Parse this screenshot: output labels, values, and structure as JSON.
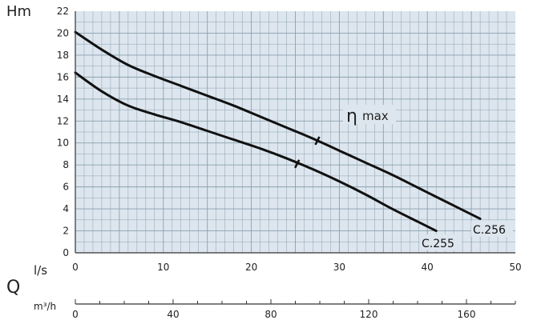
{
  "chart_data": {
    "type": "line",
    "ylabel": "Hm",
    "xlabel": "l/s",
    "big_label": "Q",
    "secondary_xlabel": "m³/h",
    "eta_label_symbol": "η",
    "eta_label_text": "max",
    "xlim": [
      0,
      50
    ],
    "ylim": [
      0,
      22
    ],
    "x_ticks": [
      0,
      10,
      20,
      30,
      40,
      50
    ],
    "y_ticks": [
      0,
      2,
      4,
      6,
      8,
      10,
      12,
      14,
      16,
      18,
      20,
      22
    ],
    "secondary_ticks": [
      0,
      40,
      80,
      120,
      160
    ],
    "secondary_factor": 3.6,
    "grid": true,
    "colors": {
      "background": "#dde6ee",
      "grid": "#8aa0b0",
      "curve": "#111111"
    },
    "series": [
      {
        "name": "C.256",
        "x": [
          0,
          3,
          6,
          9,
          12,
          15,
          18,
          21,
          24,
          27,
          30,
          33,
          36,
          39,
          42,
          46
        ],
        "y": [
          20.1,
          18.5,
          17.1,
          16.1,
          15.2,
          14.3,
          13.4,
          12.4,
          11.4,
          10.4,
          9.3,
          8.2,
          7.1,
          5.9,
          4.7,
          3.1
        ]
      },
      {
        "name": "C.255",
        "x": [
          0,
          3,
          6,
          9,
          12,
          15,
          18,
          21,
          24,
          27,
          30,
          33,
          36,
          39,
          41
        ],
        "y": [
          16.4,
          14.7,
          13.4,
          12.6,
          11.9,
          11.1,
          10.3,
          9.5,
          8.6,
          7.6,
          6.5,
          5.3,
          4.0,
          2.8,
          2.0
        ]
      }
    ],
    "eta_marks": [
      {
        "series": "C.256",
        "x": 27.5,
        "y": 10.2
      },
      {
        "series": "C.255",
        "x": 25.2,
        "y": 8.1
      }
    ]
  }
}
